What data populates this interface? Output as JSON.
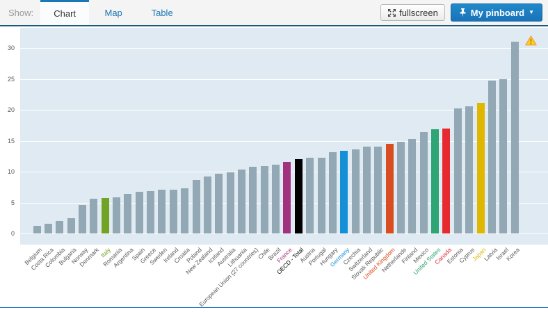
{
  "toolbar": {
    "show_label": "Show:",
    "tabs": [
      {
        "label": "Chart",
        "active": true
      },
      {
        "label": "Map",
        "active": false
      },
      {
        "label": "Table",
        "active": false
      }
    ],
    "fullscreen_label": "fullscreen",
    "pinboard_label": "My pinboard",
    "pinboard_caret": "▼"
  },
  "colors": {
    "accent_blue": "#1a78b5",
    "toolbar_border": "#1c5a7d",
    "pinboard_button": "#1a73b8",
    "plot_background": "#dfeaf2",
    "gridline": "#ffffff",
    "bottom_rule": "#2779bd"
  },
  "chart_data": {
    "type": "bar",
    "title": "",
    "xlabel": "",
    "ylabel": "",
    "ylim": [
      0,
      32
    ],
    "yticks": [
      0,
      5,
      10,
      15,
      20,
      25,
      30
    ],
    "grid": true,
    "legend": false,
    "default_bar_color": "#93a8b5",
    "default_label_color": "#595959",
    "highlight_colors": {
      "Italy": "#73a324",
      "France": "#a0327f",
      "OECD - Total": "#000000",
      "Germany": "#1590d8",
      "United Kingdom": "#d94e21",
      "United States": "#2fa474",
      "Canada": "#e62a30",
      "Japan": "#dfb700"
    },
    "categories": [
      "Belgium",
      "Costa Rica",
      "Colombia",
      "Bulgaria",
      "Norway",
      "Denmark",
      "Italy",
      "Romania",
      "Argentina",
      "Spain",
      "Greece",
      "Sweden",
      "Ireland",
      "Croatia",
      "Poland",
      "New Zealand",
      "Iceland",
      "Australia",
      "Lithuania",
      "European Union (27 countries)",
      "Chile",
      "Brazil",
      "France",
      "OECD - Total",
      "Austria",
      "Portugal",
      "Hungary",
      "Germany",
      "Czechia",
      "Switzerland",
      "Slovak Republic",
      "United Kingdom",
      "Netherlands",
      "Finland",
      "Mexico",
      "United States",
      "Canada",
      "Estonia",
      "Cyprus",
      "Japan",
      "Latvia",
      "Israel",
      "Korea"
    ],
    "values": [
      1.2,
      1.6,
      2.0,
      2.5,
      4.6,
      5.6,
      5.7,
      5.8,
      6.4,
      6.7,
      6.9,
      7.1,
      7.1,
      7.3,
      8.7,
      9.2,
      9.7,
      9.9,
      10.3,
      10.8,
      10.9,
      11.1,
      11.6,
      12.0,
      12.2,
      12.2,
      13.1,
      13.4,
      13.6,
      14.0,
      14.0,
      14.5,
      14.8,
      15.3,
      16.4,
      16.8,
      17.0,
      20.2,
      20.6,
      21.1,
      24.7,
      25.0,
      31.0
    ],
    "annotations": [
      {
        "name": "warning-icon",
        "near_category": "Korea",
        "position": "top-right"
      }
    ]
  }
}
